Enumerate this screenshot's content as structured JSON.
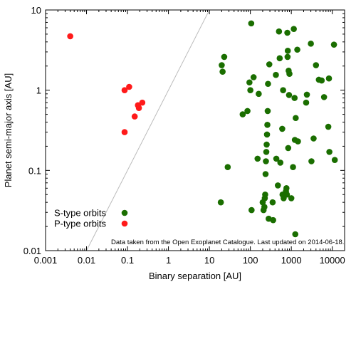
{
  "chart_data": {
    "type": "scatter",
    "xlabel": "Binary separation [AU]",
    "ylabel": "Planet semi-major axis [AU]",
    "xscale": "log",
    "yscale": "log",
    "xlim": [
      0.001,
      20000
    ],
    "ylim": [
      0.01,
      10
    ],
    "xticks": [
      {
        "value": 0.001,
        "label": "0.001"
      },
      {
        "value": 0.01,
        "label": "0.01"
      },
      {
        "value": 0.1,
        "label": "0.1"
      },
      {
        "value": 1,
        "label": "1"
      },
      {
        "value": 10,
        "label": "10"
      },
      {
        "value": 100,
        "label": "100"
      },
      {
        "value": 1000,
        "label": "1000"
      },
      {
        "value": 10000,
        "label": "10000"
      }
    ],
    "yticks": [
      {
        "value": 0.01,
        "label": "0.01"
      },
      {
        "value": 0.1,
        "label": "0.1"
      },
      {
        "value": 1,
        "label": "1"
      },
      {
        "value": 10,
        "label": "10"
      }
    ],
    "grid": false,
    "legend_position": "bottom-left",
    "annotation": "Data taken from the Open Exoplanet Catalogue. Last updated on 2014-06-18.",
    "reference_line": {
      "points": [
        [
          0.01,
          0.01
        ],
        [
          11.5,
          11.5
        ]
      ],
      "color": "#bbbbbb"
    },
    "series": [
      {
        "name": "S-type orbits",
        "color": "#1a6e00",
        "points": [
          [
            19,
            0.04
          ],
          [
            20,
            2.05
          ],
          [
            21,
            1.7
          ],
          [
            23,
            2.6
          ],
          [
            28,
            0.11
          ],
          [
            65,
            0.5
          ],
          [
            85,
            0.55
          ],
          [
            95,
            1.25
          ],
          [
            100,
            1.0
          ],
          [
            105,
            6.8
          ],
          [
            107,
            0.032
          ],
          [
            120,
            1.45
          ],
          [
            150,
            0.14
          ],
          [
            160,
            0.9
          ],
          [
            200,
            0.04
          ],
          [
            210,
            0.032
          ],
          [
            220,
            0.035
          ],
          [
            225,
            0.045
          ],
          [
            230,
            0.05
          ],
          [
            235,
            0.09
          ],
          [
            240,
            0.13
          ],
          [
            245,
            0.17
          ],
          [
            250,
            0.21
          ],
          [
            255,
            0.28
          ],
          [
            260,
            0.37
          ],
          [
            265,
            0.55
          ],
          [
            270,
            1.2
          ],
          [
            280,
            0.025
          ],
          [
            290,
            2.1
          ],
          [
            350,
            0.04
          ],
          [
            360,
            0.024
          ],
          [
            420,
            1.55
          ],
          [
            430,
            0.14
          ],
          [
            470,
            0.065
          ],
          [
            500,
            5.4
          ],
          [
            520,
            2.5
          ],
          [
            540,
            0.125
          ],
          [
            600,
            0.33
          ],
          [
            610,
            0.05
          ],
          [
            630,
            1.0
          ],
          [
            650,
            0.045
          ],
          [
            700,
            0.05
          ],
          [
            740,
            0.055
          ],
          [
            760,
            0.06
          ],
          [
            780,
            0.05
          ],
          [
            800,
            5.2
          ],
          [
            810,
            2.6
          ],
          [
            820,
            3.1
          ],
          [
            840,
            0.19
          ],
          [
            860,
            1.75
          ],
          [
            880,
            0.87
          ],
          [
            900,
            1.6
          ],
          [
            1000,
            0.045
          ],
          [
            1100,
            0.11
          ],
          [
            1150,
            5.8
          ],
          [
            1200,
            0.8
          ],
          [
            1220,
            0.24
          ],
          [
            1250,
            0.016
          ],
          [
            1280,
            0.45
          ],
          [
            1400,
            3.2
          ],
          [
            1450,
            0.23
          ],
          [
            2300,
            0.7
          ],
          [
            2400,
            0.88
          ],
          [
            3000,
            3.8
          ],
          [
            3100,
            0.13
          ],
          [
            3500,
            0.25
          ],
          [
            4000,
            2.05
          ],
          [
            4700,
            1.35
          ],
          [
            5500,
            1.32
          ],
          [
            6300,
            0.82
          ],
          [
            8000,
            0.35
          ],
          [
            8300,
            1.4
          ],
          [
            8500,
            0.17
          ],
          [
            11000,
            3.7
          ],
          [
            11500,
            0.135
          ]
        ]
      },
      {
        "name": "P-type orbits",
        "color": "#ff1a1a",
        "points": [
          [
            0.004,
            4.7
          ],
          [
            0.085,
            1.0
          ],
          [
            0.085,
            0.3
          ],
          [
            0.11,
            1.1
          ],
          [
            0.15,
            0.47
          ],
          [
            0.18,
            0.65
          ],
          [
            0.19,
            0.6
          ],
          [
            0.23,
            0.7
          ]
        ]
      }
    ]
  }
}
